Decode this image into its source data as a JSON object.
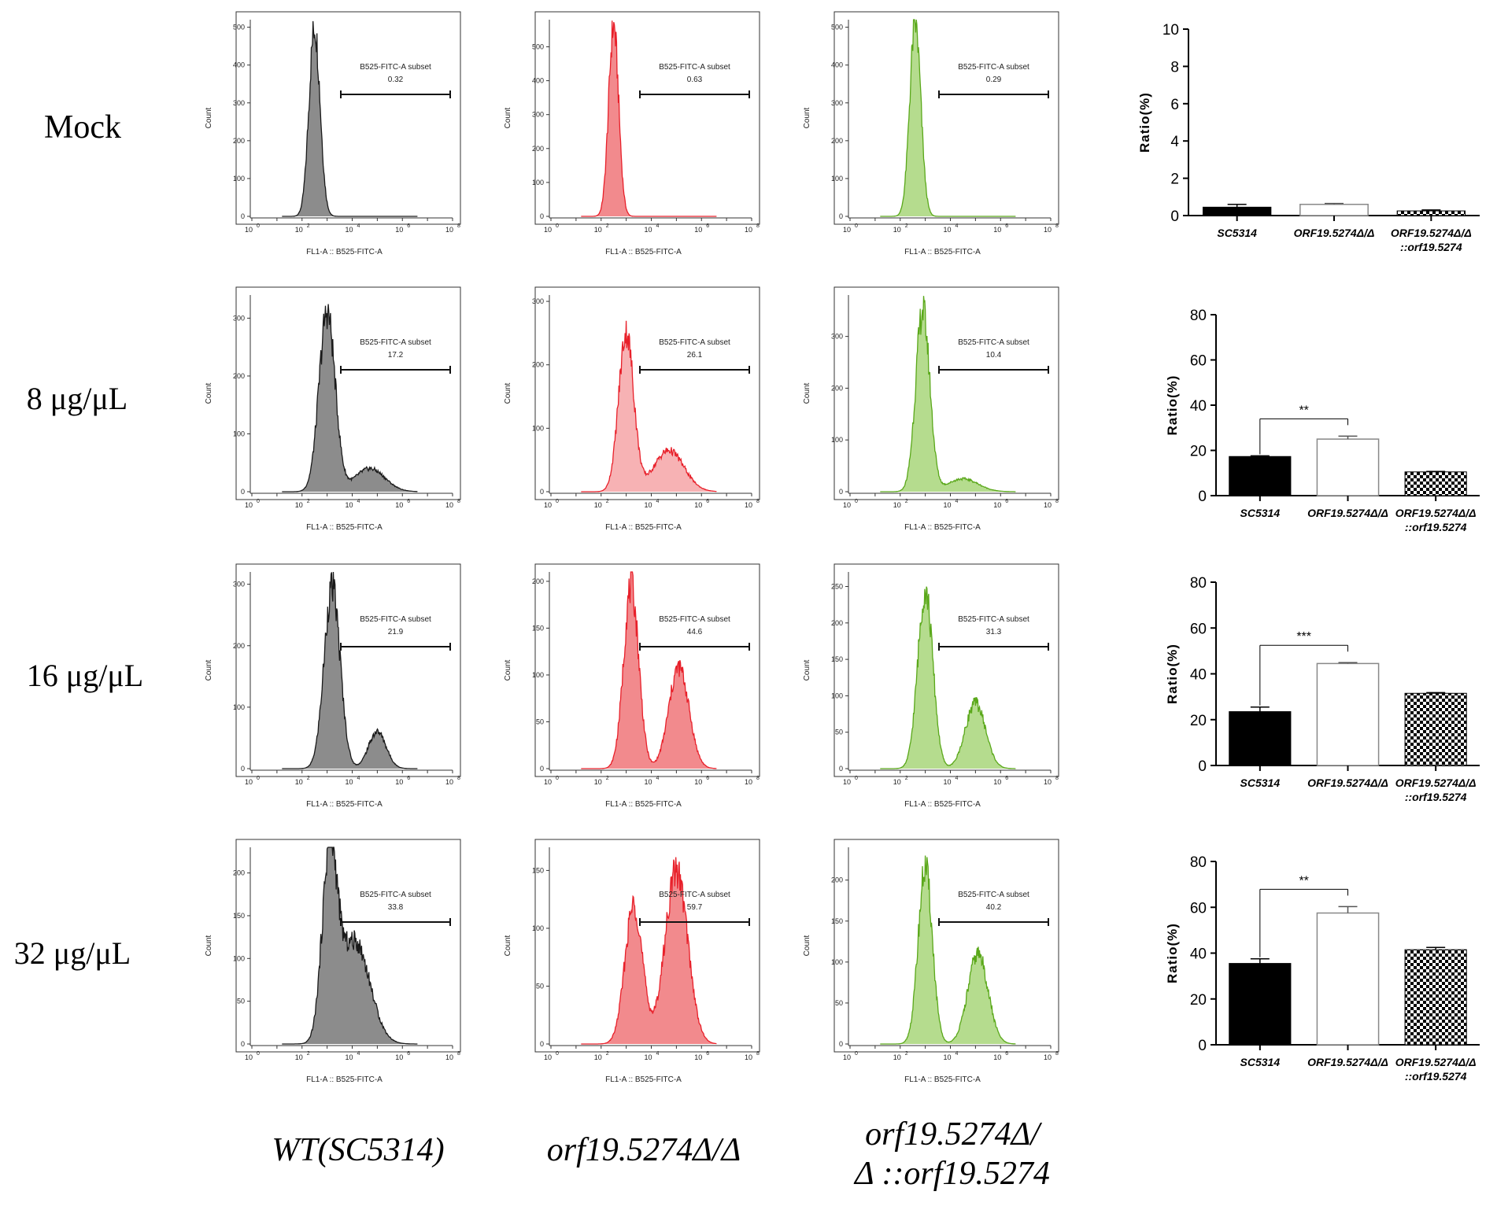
{
  "row_labels": [
    "Mock",
    "8 μg/μL",
    "16 μg/μL",
    "32 μg/μL"
  ],
  "column_labels": [
    "WT(SC5314)",
    "orf19.5274Δ/Δ",
    "orf19.5274Δ/",
    "Δ ::orf19.5274"
  ],
  "histogram_common": {
    "xlabel": "FL1-A :: B525-FITC-A",
    "ylabel": "Count",
    "gate_label": "B525-FITC-A subset",
    "x_ticks": [
      "10",
      "0",
      "10",
      "2",
      "10",
      "4",
      "10",
      "6",
      "10",
      "8"
    ]
  },
  "colors": {
    "wt_line": "#1a1a1a",
    "wt_fill": "#8c8c8c",
    "del_line": "#e8202a",
    "del_fill_light": "#f7b2b4",
    "del_fill": "#f28a8d",
    "comp_line": "#5aa81a",
    "comp_fill": "#b5dc8e"
  },
  "chart_data": [
    {
      "type": "histogram",
      "row": "Mock",
      "strain": "WT(SC5314)",
      "gate_value": "0.32",
      "yticks": [
        "0",
        "100",
        "200",
        "300",
        "400",
        "500"
      ],
      "ymax": 520,
      "peaks": [
        {
          "center": 2.5,
          "width": 0.22,
          "height": 500
        }
      ]
    },
    {
      "type": "histogram",
      "row": "Mock",
      "strain": "orf19.5274Δ/Δ",
      "gate_value": "0.63",
      "yticks": [
        "0",
        "100",
        "200",
        "300",
        "400",
        "500"
      ],
      "ymax": 580,
      "peaks": [
        {
          "center": 2.5,
          "width": 0.2,
          "height": 560
        }
      ]
    },
    {
      "type": "histogram",
      "row": "Mock",
      "strain": "orf19.5274Δ/Δ::orf19.5274",
      "gate_value": "0.29",
      "yticks": [
        "0",
        "100",
        "200",
        "300",
        "400",
        "500"
      ],
      "ymax": 520,
      "peaks": [
        {
          "center": 2.6,
          "width": 0.22,
          "height": 510
        }
      ]
    },
    {
      "type": "histogram",
      "row": "8 μg/μL",
      "strain": "WT(SC5314)",
      "gate_value": "17.2",
      "yticks": [
        "0",
        "100",
        "200",
        "300"
      ],
      "ymax": 340,
      "peaks": [
        {
          "center": 3.0,
          "width": 0.32,
          "height": 310
        },
        {
          "center": 4.7,
          "width": 0.6,
          "height": 40
        }
      ]
    },
    {
      "type": "histogram",
      "row": "8 μg/μL",
      "strain": "orf19.5274Δ/Δ",
      "gate_value": "26.1",
      "yticks": [
        "0",
        "100",
        "200",
        "300"
      ],
      "ymax": 310,
      "peaks": [
        {
          "center": 3.0,
          "width": 0.3,
          "height": 250
        },
        {
          "center": 4.7,
          "width": 0.6,
          "height": 65
        }
      ]
    },
    {
      "type": "histogram",
      "row": "8 μg/μL",
      "strain": "orf19.5274Δ/Δ::orf19.5274",
      "gate_value": "10.4",
      "yticks": [
        "0",
        "100",
        "200",
        "300"
      ],
      "ymax": 380,
      "peaks": [
        {
          "center": 2.9,
          "width": 0.28,
          "height": 350
        },
        {
          "center": 4.5,
          "width": 0.6,
          "height": 25
        }
      ]
    },
    {
      "type": "histogram",
      "row": "16 μg/μL",
      "strain": "WT(SC5314)",
      "gate_value": "21.9",
      "yticks": [
        "0",
        "100",
        "200",
        "300"
      ],
      "ymax": 320,
      "peaks": [
        {
          "center": 3.2,
          "width": 0.32,
          "height": 295
        },
        {
          "center": 5.0,
          "width": 0.35,
          "height": 60
        }
      ]
    },
    {
      "type": "histogram",
      "row": "16 μg/μL",
      "strain": "orf19.5274Δ/Δ",
      "gate_value": "44.6",
      "yticks": [
        "0",
        "50",
        "100",
        "150",
        "200"
      ],
      "ymax": 210,
      "peaks": [
        {
          "center": 3.2,
          "width": 0.3,
          "height": 195
        },
        {
          "center": 5.1,
          "width": 0.4,
          "height": 108
        }
      ]
    },
    {
      "type": "histogram",
      "row": "16 μg/μL",
      "strain": "orf19.5274Δ/Δ::orf19.5274",
      "gate_value": "31.3",
      "yticks": [
        "0",
        "50",
        "100",
        "150",
        "200",
        "250"
      ],
      "ymax": 270,
      "peaks": [
        {
          "center": 3.0,
          "width": 0.3,
          "height": 245
        },
        {
          "center": 5.0,
          "width": 0.4,
          "height": 90
        }
      ]
    },
    {
      "type": "histogram",
      "row": "32 μg/μL",
      "strain": "WT(SC5314)",
      "gate_value": "33.8",
      "yticks": [
        "0",
        "50",
        "100",
        "150",
        "200"
      ],
      "ymax": 230,
      "peaks": [
        {
          "center": 3.1,
          "width": 0.3,
          "height": 210
        },
        {
          "center": 4.1,
          "width": 0.6,
          "height": 120
        }
      ]
    },
    {
      "type": "histogram",
      "row": "32 μg/μL",
      "strain": "orf19.5274Δ/Δ",
      "gate_value": "59.7",
      "yticks": [
        "0",
        "50",
        "100",
        "150"
      ],
      "ymax": 170,
      "peaks": [
        {
          "center": 3.3,
          "width": 0.35,
          "height": 120
        },
        {
          "center": 5.0,
          "width": 0.45,
          "height": 150
        }
      ]
    },
    {
      "type": "histogram",
      "row": "32 μg/μL",
      "strain": "orf19.5274Δ/Δ::orf19.5274",
      "gate_value": "40.2",
      "yticks": [
        "0",
        "50",
        "100",
        "150",
        "200"
      ],
      "ymax": 240,
      "peaks": [
        {
          "center": 3.0,
          "width": 0.28,
          "height": 215
        },
        {
          "center": 5.1,
          "width": 0.4,
          "height": 110
        }
      ]
    },
    {
      "type": "bar",
      "row": "Mock",
      "ylabel": "Ratio(%)",
      "ylim": [
        0,
        10
      ],
      "yticks": [
        "0",
        "2",
        "4",
        "6",
        "8",
        "10"
      ],
      "categories": [
        "SC5314",
        "ORF19.5274Δ/Δ",
        "ORF19.5274Δ/Δ"
      ],
      "category_line2": [
        "",
        "",
        "::orf19.5274"
      ],
      "values": [
        0.45,
        0.6,
        0.25
      ],
      "errors": [
        0.15,
        0.05,
        0.05
      ],
      "significance": null
    },
    {
      "type": "bar",
      "row": "8 μg/μL",
      "ylabel": "Ratio(%)",
      "ylim": [
        0,
        80
      ],
      "yticks": [
        "0",
        "20",
        "40",
        "60",
        "80"
      ],
      "categories": [
        "SC5314",
        "ORF19.5274Δ/Δ",
        "ORF19.5274Δ/Δ"
      ],
      "category_line2": [
        "",
        "",
        "::orf19.5274"
      ],
      "values": [
        17.3,
        25.0,
        10.5
      ],
      "errors": [
        0.3,
        1.3,
        0.2
      ],
      "significance": "**"
    },
    {
      "type": "bar",
      "row": "16 μg/μL",
      "ylabel": "Ratio(%)",
      "ylim": [
        0,
        80
      ],
      "yticks": [
        "0",
        "20",
        "40",
        "60",
        "80"
      ],
      "categories": [
        "SC5314",
        "ORF19.5274Δ/Δ",
        "ORF19.5274Δ/Δ"
      ],
      "category_line2": [
        "",
        "",
        "::orf19.5274"
      ],
      "values": [
        23.5,
        44.5,
        31.5
      ],
      "errors": [
        2.0,
        0.4,
        0.3
      ],
      "significance": "***"
    },
    {
      "type": "bar",
      "row": "32 μg/μL",
      "ylabel": "Ratio(%)",
      "ylim": [
        0,
        80
      ],
      "yticks": [
        "0",
        "20",
        "40",
        "60",
        "80"
      ],
      "categories": [
        "SC5314",
        "ORF19.5274Δ/Δ",
        "ORF19.5274Δ/Δ"
      ],
      "category_line2": [
        "",
        "",
        "::orf19.5274"
      ],
      "values": [
        35.5,
        57.5,
        41.5
      ],
      "errors": [
        2.0,
        2.8,
        1.0
      ],
      "significance": "**"
    }
  ]
}
